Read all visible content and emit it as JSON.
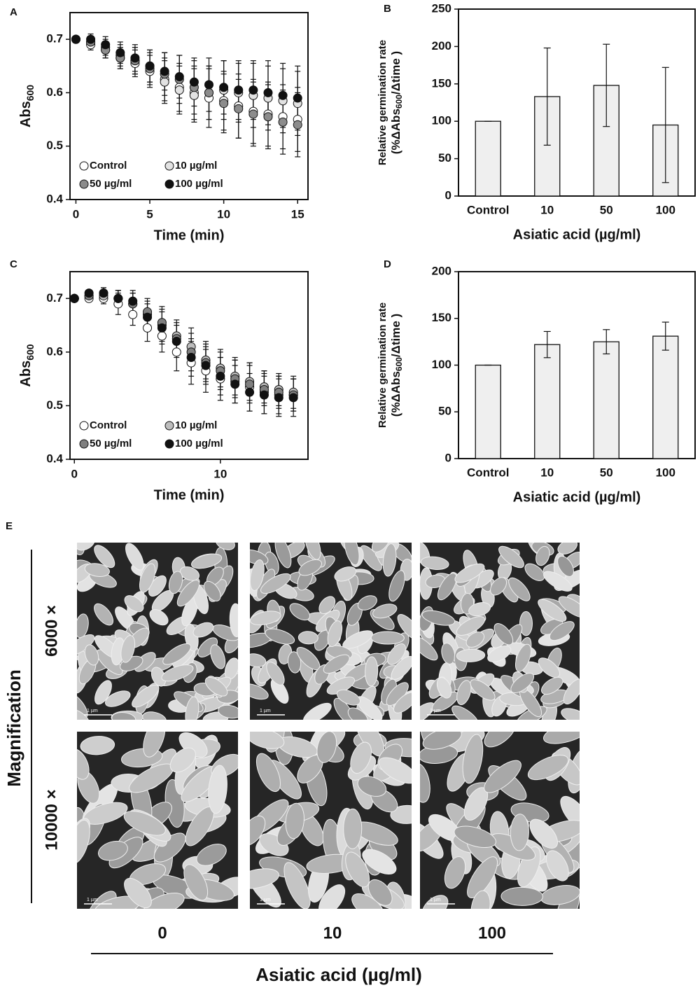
{
  "chart_data": [
    {
      "type": "scatter",
      "panel": "A",
      "ylabel": {
        "base": "Abs",
        "sub": "600"
      },
      "xlabel": "Time (min)",
      "x": [
        0,
        1,
        2,
        3,
        4,
        5,
        6,
        7,
        8,
        9,
        10,
        11,
        12,
        13,
        14,
        15
      ],
      "xlim": [
        -0.4,
        15.7
      ],
      "xticks": [
        0,
        5,
        10,
        15
      ],
      "ylim": [
        0.4,
        0.75
      ],
      "yticks": [
        0.4,
        0.5,
        0.6,
        0.7
      ],
      "series": [
        {
          "name": "Control",
          "color": "#ffffff",
          "values": [
            0.7,
            0.69,
            0.68,
            0.665,
            0.655,
            0.64,
            0.625,
            0.61,
            0.6,
            0.59,
            0.585,
            0.575,
            0.565,
            0.56,
            0.555,
            0.55
          ],
          "errors": [
            0,
            0.01,
            0.015,
            0.02,
            0.025,
            0.03,
            0.04,
            0.045,
            0.05,
            0.055,
            0.055,
            0.06,
            0.06,
            0.06,
            0.06,
            0.06
          ]
        },
        {
          "name": "10 µg/ml",
          "color": "#e2e2e2",
          "values": [
            0.7,
            0.695,
            0.685,
            0.67,
            0.66,
            0.65,
            0.62,
            0.605,
            0.595,
            0.6,
            0.605,
            0.6,
            0.595,
            0.59,
            0.585,
            0.58
          ],
          "errors": [
            0,
            0.01,
            0.015,
            0.02,
            0.025,
            0.03,
            0.04,
            0.045,
            0.05,
            0.05,
            0.055,
            0.055,
            0.06,
            0.06,
            0.06,
            0.06
          ]
        },
        {
          "name": "50 µg/ml",
          "color": "#8c8c8c",
          "values": [
            0.7,
            0.695,
            0.68,
            0.665,
            0.66,
            0.645,
            0.635,
            0.625,
            0.61,
            0.6,
            0.58,
            0.57,
            0.56,
            0.555,
            0.545,
            0.54
          ],
          "errors": [
            0,
            0.01,
            0.015,
            0.02,
            0.025,
            0.03,
            0.04,
            0.045,
            0.05,
            0.05,
            0.055,
            0.055,
            0.06,
            0.06,
            0.06,
            0.06
          ]
        },
        {
          "name": "100 µg/ml",
          "color": "#111111",
          "values": [
            0.7,
            0.7,
            0.69,
            0.675,
            0.665,
            0.65,
            0.64,
            0.63,
            0.62,
            0.615,
            0.61,
            0.605,
            0.605,
            0.6,
            0.595,
            0.59
          ],
          "errors": [
            0,
            0.01,
            0.015,
            0.02,
            0.025,
            0.03,
            0.035,
            0.04,
            0.045,
            0.05,
            0.05,
            0.055,
            0.055,
            0.06,
            0.06,
            0.06
          ]
        }
      ]
    },
    {
      "type": "bar",
      "panel": "B",
      "ylabel": {
        "line1": "Relative germination rate",
        "pre": "(%ΔAbs",
        "sub": "600",
        "post": "/Δtime )"
      },
      "xlabel": "Asiatic acid (µg/ml)",
      "categories": [
        "Control",
        "10",
        "50",
        "100"
      ],
      "values": [
        100,
        133,
        148,
        95
      ],
      "errors": [
        0,
        65,
        55,
        77
      ],
      "color": "#efefef",
      "ylim": [
        0,
        250
      ],
      "yticks": [
        0,
        50,
        100,
        150,
        200,
        250
      ]
    },
    {
      "type": "scatter",
      "panel": "C",
      "ylabel": {
        "base": "Abs",
        "sub": "600"
      },
      "xlabel": "Time (min)",
      "x": [
        0,
        1,
        2,
        3,
        4,
        5,
        6,
        7,
        8,
        9,
        10,
        11,
        12,
        13,
        14,
        15
      ],
      "xlim": [
        -0.3,
        16
      ],
      "xticks": [
        0,
        10
      ],
      "ylim": [
        0.4,
        0.75
      ],
      "yticks": [
        0.4,
        0.5,
        0.6,
        0.7
      ],
      "series": [
        {
          "name": "Control",
          "color": "#ffffff",
          "values": [
            0.7,
            0.7,
            0.7,
            0.69,
            0.67,
            0.645,
            0.63,
            0.6,
            0.58,
            0.565,
            0.55,
            0.545,
            0.535,
            0.525,
            0.52,
            0.52
          ],
          "errors": [
            0,
            0.005,
            0.01,
            0.02,
            0.02,
            0.025,
            0.03,
            0.035,
            0.04,
            0.04,
            0.04,
            0.04,
            0.045,
            0.04,
            0.035,
            0.03
          ]
        },
        {
          "name": "10 µg/ml",
          "color": "#bdbdbd",
          "values": [
            0.7,
            0.705,
            0.705,
            0.7,
            0.69,
            0.67,
            0.65,
            0.63,
            0.61,
            0.585,
            0.57,
            0.555,
            0.545,
            0.535,
            0.53,
            0.525
          ],
          "errors": [
            0,
            0.005,
            0.01,
            0.015,
            0.02,
            0.025,
            0.03,
            0.03,
            0.035,
            0.035,
            0.035,
            0.035,
            0.035,
            0.03,
            0.03,
            0.03
          ]
        },
        {
          "name": "50 µg/ml",
          "color": "#7f7f7f",
          "values": [
            0.7,
            0.705,
            0.71,
            0.7,
            0.69,
            0.675,
            0.655,
            0.625,
            0.6,
            0.58,
            0.565,
            0.55,
            0.54,
            0.53,
            0.525,
            0.52
          ],
          "errors": [
            0,
            0.005,
            0.01,
            0.015,
            0.02,
            0.025,
            0.03,
            0.03,
            0.035,
            0.035,
            0.035,
            0.035,
            0.035,
            0.03,
            0.03,
            0.03
          ]
        },
        {
          "name": "100 µg/ml",
          "color": "#111111",
          "values": [
            0.7,
            0.71,
            0.71,
            0.7,
            0.695,
            0.665,
            0.645,
            0.62,
            0.59,
            0.575,
            0.555,
            0.54,
            0.525,
            0.52,
            0.515,
            0.515
          ],
          "errors": [
            0,
            0.005,
            0.01,
            0.015,
            0.02,
            0.025,
            0.03,
            0.03,
            0.035,
            0.035,
            0.035,
            0.035,
            0.035,
            0.035,
            0.035,
            0.035
          ]
        }
      ]
    },
    {
      "type": "bar",
      "panel": "D",
      "ylabel": {
        "line1": "Relative germination rate",
        "pre": "(%ΔAbs",
        "sub": "600",
        "post": "/Δtime )"
      },
      "xlabel": "Asiatic acid (µg/ml)",
      "categories": [
        "Control",
        "10",
        "50",
        "100"
      ],
      "values": [
        100,
        122,
        125,
        131
      ],
      "errors": [
        0,
        14,
        13,
        15
      ],
      "color": "#efefef",
      "ylim": [
        0,
        200
      ],
      "yticks": [
        0,
        50,
        100,
        150,
        200
      ]
    }
  ],
  "micrographs": {
    "panel": "E",
    "ylabel": "Magnification",
    "row_labels": [
      "6000 ×",
      "10000 ×"
    ],
    "column_labels": [
      "0",
      "10",
      "100"
    ],
    "xlabel": "Asiatic acid (µg/ml)",
    "scale_bars": [
      [
        "1 µm",
        "1 µm",
        "1 µm"
      ],
      [
        "1 µm",
        "1 µm",
        "1 µm"
      ]
    ]
  }
}
